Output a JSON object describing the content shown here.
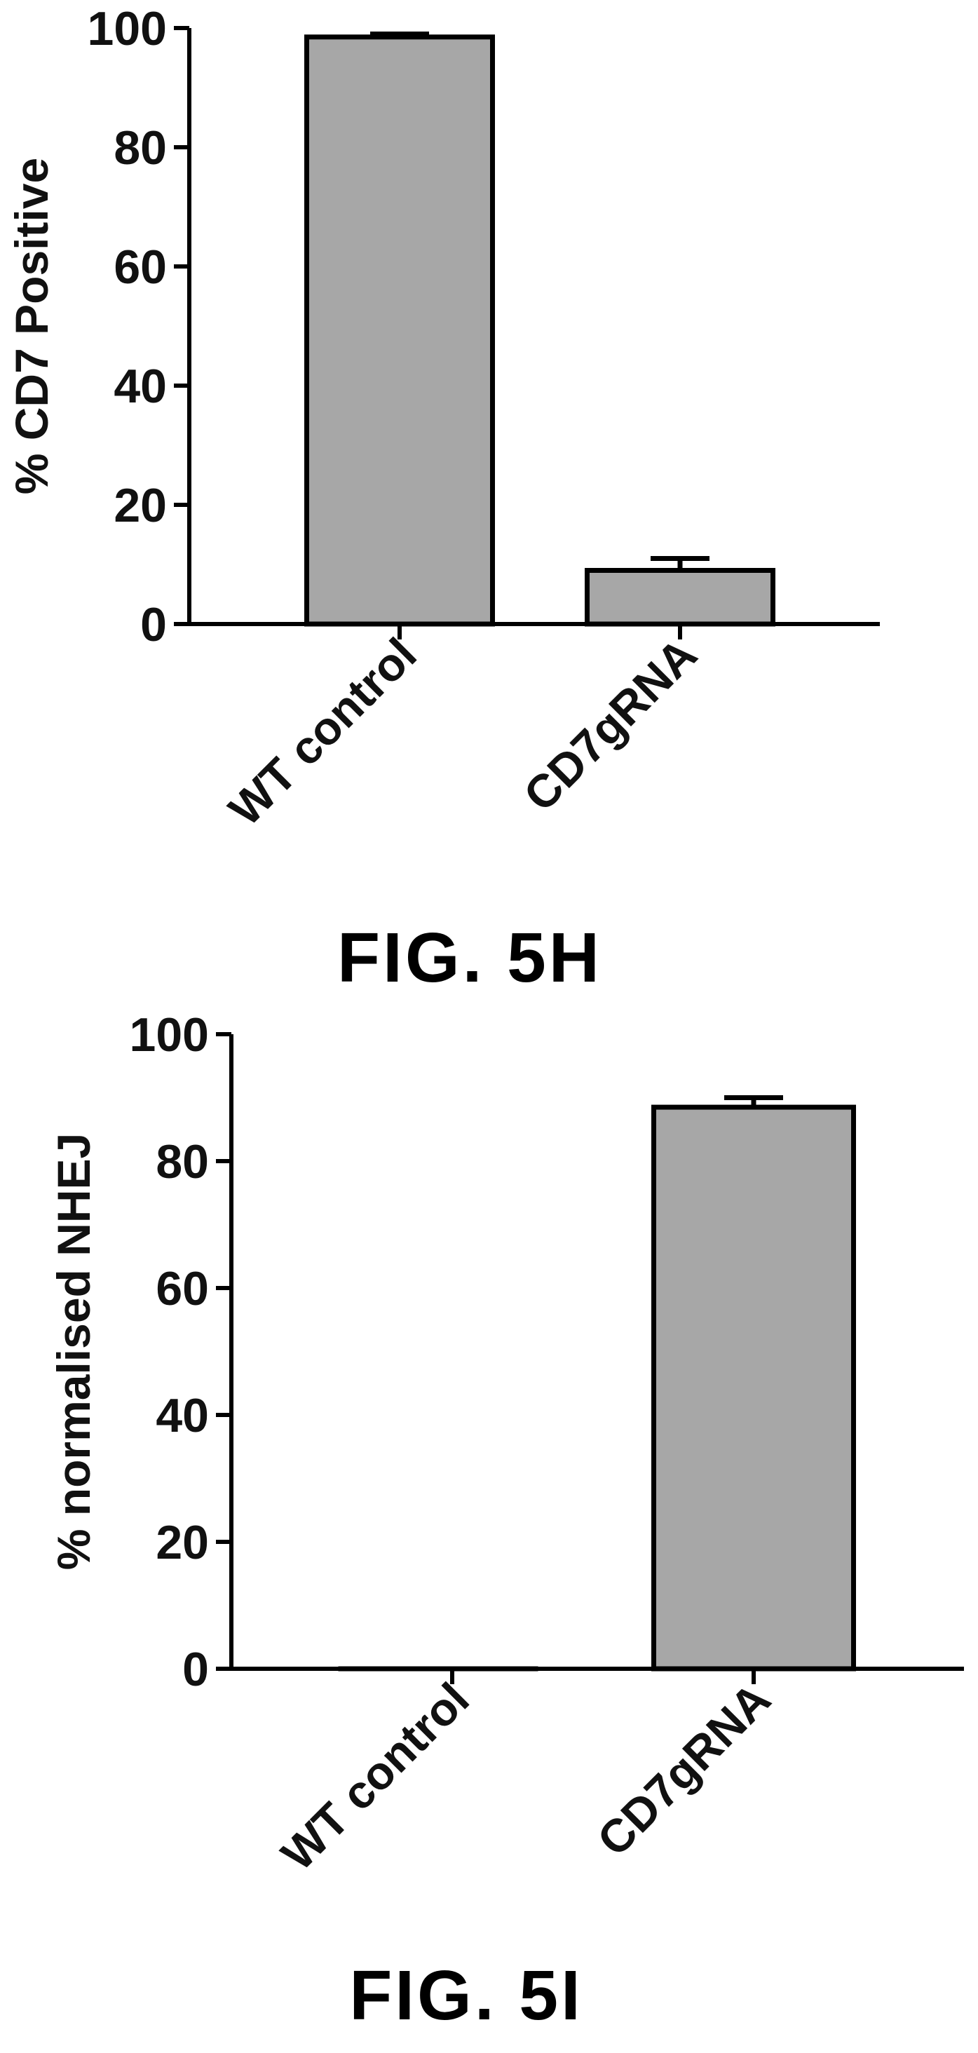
{
  "chart_data": [
    {
      "type": "bar",
      "title": "",
      "ylabel": "% CD7 Positive",
      "xlabel": "",
      "ylim": [
        0,
        100
      ],
      "yticks": [
        0,
        20,
        40,
        60,
        80,
        100
      ],
      "categories": [
        "WT control",
        "CD7gRNA"
      ],
      "values": [
        98.5,
        9
      ],
      "errors": [
        0.5,
        2
      ],
      "bar_color": "#a7a7a7",
      "caption": "FIG. 5H"
    },
    {
      "type": "bar",
      "title": "",
      "ylabel": "% normalised NHEJ",
      "xlabel": "",
      "ylim": [
        0,
        100
      ],
      "yticks": [
        0,
        20,
        40,
        60,
        80,
        100
      ],
      "categories": [
        "WT control",
        "CD7gRNA"
      ],
      "values": [
        0,
        88.5
      ],
      "errors": [
        0,
        1.5
      ],
      "bar_color": "#a7a7a7",
      "caption": "FIG. 5I"
    }
  ]
}
